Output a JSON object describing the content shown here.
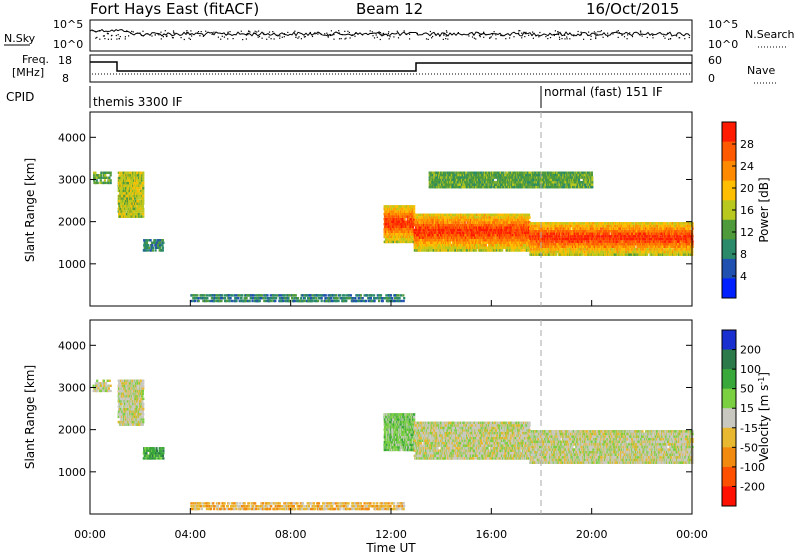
{
  "header": {
    "radar": "Fort Hays East (fitACF)",
    "beam": "Beam 12",
    "date": "16/Oct/2015"
  },
  "noise_panel": {
    "left_label": "N.Sky",
    "right_label": "N.Search",
    "left_ticks": [
      "10^5",
      "10^0"
    ],
    "right_ticks": [
      "10^5",
      "10^0"
    ]
  },
  "freq_panel": {
    "left_label_1": "Freq.",
    "left_label_2": "[MHz]",
    "right_label": "Nave",
    "left_ticks": [
      "18",
      "8"
    ],
    "right_ticks": [
      "60",
      "0"
    ]
  },
  "cpid_panel": {
    "label": "CPID",
    "modes": [
      "themis 3300 IF",
      "normal (fast) 151 IF"
    ]
  },
  "colors": {
    "power": [
      "#0020ff",
      "#2050b0",
      "#2a8a6a",
      "#4f9a3a",
      "#b8c81e",
      "#ffbf00",
      "#ff8a00",
      "#ff5a00",
      "#ff1a00"
    ],
    "velocity": [
      "#1a2fd0",
      "#2c7a4a",
      "#39a83a",
      "#7ad040",
      "#c8c8c0",
      "#e8b830",
      "#f28a10",
      "#ff5000",
      "#ff1000"
    ]
  },
  "chart_data": [
    {
      "type": "heatmap",
      "name": "power-panel",
      "xlabel": "",
      "ylabel": "Slant Range [km]",
      "xlim": [
        0,
        24
      ],
      "ylim": [
        0,
        4600
      ],
      "yticks": [
        "1000",
        "2000",
        "3000",
        "4000"
      ],
      "colorbar": {
        "label": "Power [dB]",
        "range": [
          0,
          32
        ],
        "ticks": [
          "4",
          "8",
          "12",
          "16",
          "20",
          "24",
          "28"
        ]
      },
      "regions": [
        {
          "t0": 0.1,
          "t1": 0.8,
          "r0": 2900,
          "r1": 3200,
          "level": 3
        },
        {
          "t0": 1.1,
          "t1": 2.1,
          "r0": 2100,
          "r1": 3200,
          "level": 4
        },
        {
          "t0": 2.1,
          "t1": 2.9,
          "r0": 1300,
          "r1": 1600,
          "level": 2
        },
        {
          "t0": 11.7,
          "t1": 12.9,
          "r0": 1500,
          "r1": 2400,
          "level": 6
        },
        {
          "t0": 12.9,
          "t1": 17.5,
          "r0": 1300,
          "r1": 2200,
          "level": 6
        },
        {
          "t0": 17.5,
          "t1": 24.0,
          "r0": 1200,
          "r1": 2000,
          "level": 6
        },
        {
          "t0": 13.5,
          "t1": 20.0,
          "r0": 2800,
          "r1": 3200,
          "level": 3
        },
        {
          "t0": 4.0,
          "t1": 12.5,
          "r0": 100,
          "r1": 300,
          "level": 2
        }
      ]
    },
    {
      "type": "heatmap",
      "name": "velocity-panel",
      "xlabel": "Time UT",
      "ylabel": "Slant Range [km]",
      "xlim": [
        0,
        24
      ],
      "ylim": [
        0,
        4600
      ],
      "yticks": [
        "1000",
        "2000",
        "3000",
        "4000"
      ],
      "xticks": [
        "00:00",
        "04:00",
        "08:00",
        "12:00",
        "16:00",
        "20:00",
        "00:00"
      ],
      "colorbar": {
        "label": "Velocity [m s^-1]",
        "ticks": [
          "200",
          "100",
          "50",
          "15",
          "-15",
          "-50",
          "-100",
          "-200"
        ]
      },
      "regions": [
        {
          "t0": 0.1,
          "t1": 0.8,
          "r0": 2900,
          "r1": 3200,
          "level": 4
        },
        {
          "t0": 1.1,
          "t1": 2.1,
          "r0": 2100,
          "r1": 3200,
          "level": 4
        },
        {
          "t0": 2.1,
          "t1": 2.9,
          "r0": 1300,
          "r1": 1600,
          "level": 2
        },
        {
          "t0": 11.7,
          "t1": 12.9,
          "r0": 1500,
          "r1": 2400,
          "level": 3
        },
        {
          "t0": 12.9,
          "t1": 17.5,
          "r0": 1300,
          "r1": 2200,
          "level": 4
        },
        {
          "t0": 17.5,
          "t1": 24.0,
          "r0": 1200,
          "r1": 2000,
          "level": 4
        },
        {
          "t0": 4.0,
          "t1": 12.5,
          "r0": 100,
          "r1": 300,
          "level": 5
        }
      ]
    }
  ]
}
